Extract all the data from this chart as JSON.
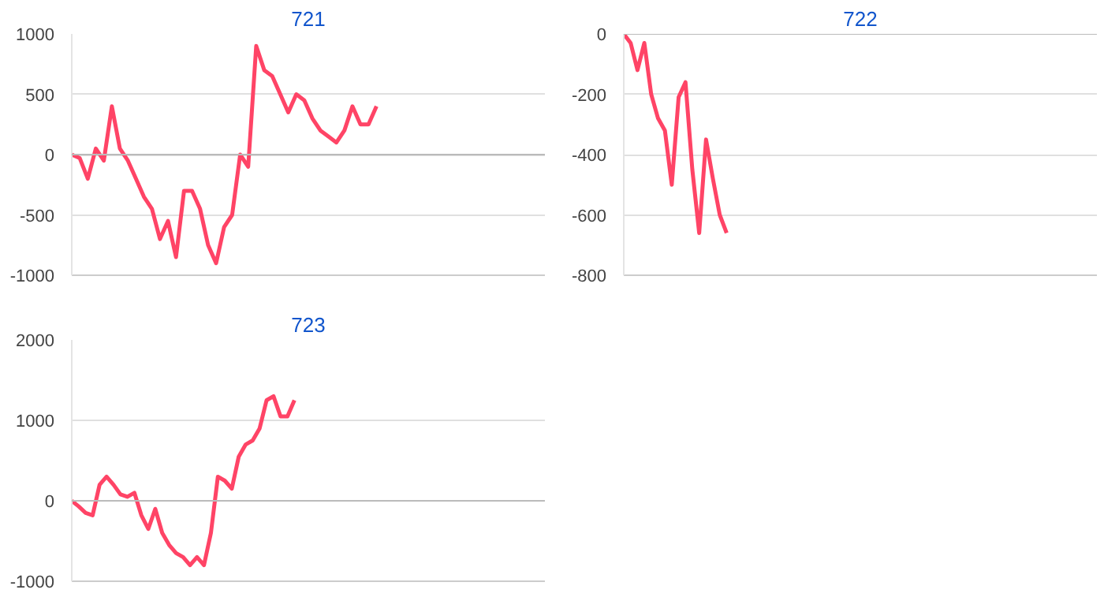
{
  "chart_data": [
    {
      "type": "line",
      "title": "721",
      "categories": [
        null,
        null,
        null,
        null,
        null,
        null,
        null,
        null,
        null,
        null,
        null,
        null,
        null,
        null,
        null,
        null,
        null,
        null,
        null,
        null,
        null,
        null,
        null,
        null,
        null,
        null,
        null,
        null,
        null,
        null,
        null,
        null,
        null,
        null,
        null,
        null,
        null,
        null,
        null,
        null,
        null,
        null,
        null,
        null,
        null,
        null,
        null,
        null,
        null,
        null,
        null,
        null,
        null,
        null,
        null,
        null,
        null,
        null,
        null,
        null
      ],
      "series": [
        {
          "color": "#ff4466",
          "values": [
            0,
            -30,
            -200,
            50,
            -50,
            400,
            50,
            -50,
            -200,
            -350,
            -450,
            -700,
            -550,
            -850,
            -300,
            -300,
            -450,
            -750,
            -900,
            -600,
            -500,
            0,
            -100,
            900,
            700,
            650,
            500,
            350,
            500,
            450,
            300,
            200,
            150,
            100,
            200,
            400,
            250,
            250,
            400,
            null,
            null,
            null,
            null,
            null,
            null,
            null,
            null,
            null,
            null,
            null,
            null,
            null,
            null,
            null,
            null,
            null,
            null,
            null,
            null,
            null
          ]
        }
      ],
      "ylim": [
        -1000,
        1000
      ],
      "yticks": [
        -1000,
        -500,
        0,
        500,
        1000
      ],
      "grid": "y",
      "tick_labels": "y"
    },
    {
      "type": "line",
      "title": "722",
      "categories": [
        null,
        null,
        null,
        null,
        null,
        null,
        null,
        null,
        null,
        null,
        null,
        null,
        null,
        null,
        null,
        null,
        null,
        null,
        null,
        null,
        null,
        null,
        null,
        null,
        null,
        null,
        null,
        null,
        null,
        null,
        null,
        null,
        null,
        null,
        null,
        null,
        null,
        null,
        null,
        null,
        null,
        null,
        null,
        null,
        null,
        null,
        null,
        null,
        null,
        null,
        null,
        null,
        null,
        null,
        null,
        null,
        null,
        null,
        null,
        null,
        null,
        null,
        null,
        null,
        null,
        null,
        null,
        null,
        null,
        null
      ],
      "series": [
        {
          "color": "#ff4466",
          "values": [
            0,
            -30,
            -120,
            -30,
            -200,
            -280,
            -320,
            -500,
            -210,
            -160,
            -450,
            -660,
            -350,
            -480,
            -600,
            -660,
            null,
            null,
            null,
            null,
            null,
            null,
            null,
            null,
            null,
            null,
            null,
            null,
            null,
            null,
            null,
            null,
            null,
            null,
            null,
            null,
            null,
            null,
            null,
            null,
            null,
            null,
            null,
            null,
            null,
            null,
            null,
            null,
            null,
            null,
            null,
            null,
            null,
            null,
            null,
            null,
            null,
            null,
            null,
            null,
            null,
            null,
            null,
            null,
            null,
            null,
            null,
            null,
            null,
            null
          ]
        }
      ],
      "ylim": [
        -800,
        0
      ],
      "yticks": [
        -800,
        -600,
        -400,
        -200,
        0
      ],
      "grid": "y",
      "tick_labels": "y"
    },
    {
      "type": "line",
      "title": "723",
      "categories": [
        null,
        null,
        null,
        null,
        null,
        null,
        null,
        null,
        null,
        null,
        null,
        null,
        null,
        null,
        null,
        null,
        null,
        null,
        null,
        null,
        null,
        null,
        null,
        null,
        null,
        null,
        null,
        null,
        null,
        null,
        null,
        null,
        null,
        null,
        null,
        null,
        null,
        null,
        null,
        null,
        null,
        null,
        null,
        null,
        null,
        null,
        null,
        null,
        null,
        null,
        null,
        null,
        null,
        null,
        null,
        null,
        null,
        null,
        null,
        null,
        null,
        null,
        null,
        null,
        null,
        null,
        null,
        null,
        null
      ],
      "series": [
        {
          "color": "#ff4466",
          "values": [
            0,
            -70,
            -150,
            -180,
            200,
            300,
            200,
            80,
            50,
            100,
            -180,
            -350,
            -100,
            -400,
            -550,
            -650,
            -700,
            -800,
            -700,
            -800,
            -400,
            300,
            250,
            150,
            550,
            700,
            750,
            900,
            1250,
            1300,
            1050,
            1050,
            1250,
            null,
            null,
            null,
            null,
            null,
            null,
            null,
            null,
            null,
            null,
            null,
            null,
            null,
            null,
            null,
            null,
            null,
            null,
            null,
            null,
            null,
            null,
            null,
            null,
            null,
            null,
            null,
            null,
            null,
            null,
            null,
            null,
            null,
            null,
            null,
            null
          ]
        }
      ],
      "ylim": [
        -1000,
        2000
      ],
      "yticks": [
        -1000,
        0,
        1000,
        2000
      ],
      "grid": "y",
      "tick_labels": "y"
    }
  ]
}
